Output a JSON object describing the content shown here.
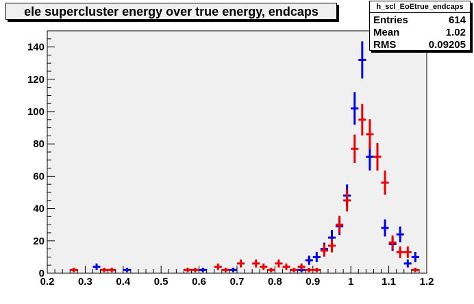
{
  "title": "ele supercluster energy over true energy, endcaps",
  "stats": {
    "name": "h_scl_EoEtrue_endcaps",
    "rows": [
      {
        "label": "Entries",
        "value": "614"
      },
      {
        "label": "Mean",
        "value": "1.02"
      },
      {
        "label": "RMS",
        "value": "0.09205"
      }
    ]
  },
  "chart_data": {
    "type": "scatter",
    "title": "ele supercluster energy over true energy, endcaps",
    "xlim": [
      0.2,
      1.2
    ],
    "ylim": [
      0,
      150
    ],
    "x_ticks": [
      "0.2",
      "0.3",
      "0.4",
      "0.5",
      "0.6",
      "0.7",
      "0.8",
      "0.9",
      "1",
      "1.1",
      "1.2"
    ],
    "y_ticks": [
      "0",
      "20",
      "40",
      "60",
      "80",
      "100",
      "120",
      "140"
    ],
    "grid": false,
    "plot_background": "#f0f0f0",
    "bin_width": 0.02,
    "series": [
      {
        "color": "#0000ee",
        "points": [
          {
            "x": 0.33,
            "y": 4
          },
          {
            "x": 0.41,
            "y": 2
          },
          {
            "x": 0.61,
            "y": 2
          },
          {
            "x": 0.69,
            "y": 2
          },
          {
            "x": 0.87,
            "y": 2
          },
          {
            "x": 0.89,
            "y": 8
          },
          {
            "x": 0.91,
            "y": 10
          },
          {
            "x": 0.93,
            "y": 15
          },
          {
            "x": 0.95,
            "y": 22
          },
          {
            "x": 0.97,
            "y": 29
          },
          {
            "x": 0.99,
            "y": 48
          },
          {
            "x": 1.01,
            "y": 102
          },
          {
            "x": 1.03,
            "y": 132
          },
          {
            "x": 1.05,
            "y": 72
          },
          {
            "x": 1.07,
            "y": 72
          },
          {
            "x": 1.09,
            "y": 28
          },
          {
            "x": 1.11,
            "y": 18
          },
          {
            "x": 1.13,
            "y": 24
          },
          {
            "x": 1.15,
            "y": 6
          },
          {
            "x": 1.17,
            "y": 10
          }
        ]
      },
      {
        "color": "#ee0000",
        "points": [
          {
            "x": 0.27,
            "y": 2
          },
          {
            "x": 0.35,
            "y": 2
          },
          {
            "x": 0.37,
            "y": 2
          },
          {
            "x": 0.57,
            "y": 2
          },
          {
            "x": 0.59,
            "y": 2
          },
          {
            "x": 0.65,
            "y": 4
          },
          {
            "x": 0.67,
            "y": 2
          },
          {
            "x": 0.71,
            "y": 6
          },
          {
            "x": 0.75,
            "y": 6
          },
          {
            "x": 0.77,
            "y": 4
          },
          {
            "x": 0.79,
            "y": 2
          },
          {
            "x": 0.81,
            "y": 6
          },
          {
            "x": 0.83,
            "y": 4
          },
          {
            "x": 0.85,
            "y": 2
          },
          {
            "x": 0.87,
            "y": 4
          },
          {
            "x": 0.89,
            "y": 2
          },
          {
            "x": 0.91,
            "y": 2
          },
          {
            "x": 0.93,
            "y": 14
          },
          {
            "x": 0.95,
            "y": 17
          },
          {
            "x": 0.97,
            "y": 30
          },
          {
            "x": 0.99,
            "y": 45
          },
          {
            "x": 1.01,
            "y": 77
          },
          {
            "x": 1.03,
            "y": 95
          },
          {
            "x": 1.05,
            "y": 86
          },
          {
            "x": 1.07,
            "y": 72
          },
          {
            "x": 1.09,
            "y": 56
          },
          {
            "x": 1.11,
            "y": 19
          },
          {
            "x": 1.13,
            "y": 13
          },
          {
            "x": 1.15,
            "y": 13
          },
          {
            "x": 1.17,
            "y": 2
          }
        ]
      }
    ]
  }
}
